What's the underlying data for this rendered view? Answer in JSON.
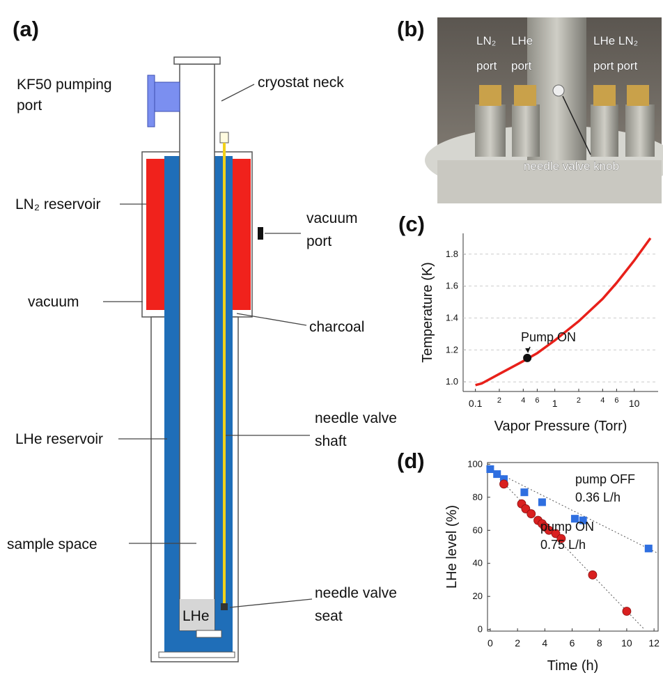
{
  "diagram": {
    "panel_label": "(a)",
    "labels": {
      "kf50": [
        "KF50 pumping",
        "port"
      ],
      "neck": "cryostat neck",
      "ln2": "LN₂ reservoir",
      "vacuum_port": [
        "vacuum",
        "port"
      ],
      "vacuum": "vacuum",
      "charcoal": "charcoal",
      "lhe_reservoir": "LHe reservoir",
      "shaft": [
        "needle valve",
        "shaft"
      ],
      "sample": "sample space",
      "seat": [
        "needle valve",
        "seat"
      ],
      "lhe": "LHe"
    }
  },
  "photo": {
    "panel_label": "(b)",
    "labels": {
      "ln2_left": [
        "LN₂",
        "port"
      ],
      "lhe_left": [
        "LHe",
        "port"
      ],
      "right": [
        "LHe LN₂",
        "port port"
      ],
      "knob": "needle valve knob"
    }
  },
  "chart_data": [
    {
      "type": "line",
      "panel_label": "(c)",
      "xlabel": "Vapor Pressure (Torr)",
      "ylabel": "Temperature (K)",
      "xscale": "log",
      "xlim": [
        0.07,
        20
      ],
      "ylim": [
        0.94,
        1.93
      ],
      "grid": true,
      "frame": false,
      "xticks": [
        0.1,
        {
          "value": 0.2,
          "label": "2"
        },
        {
          "value": 0.4,
          "label": "4"
        },
        {
          "value": 0.6,
          "label": "6"
        },
        1,
        {
          "value": 2,
          "label": "2"
        },
        {
          "value": 4,
          "label": "4"
        },
        {
          "value": 6,
          "label": "6"
        },
        10
      ],
      "yticks": [
        {
          "value": 1,
          "label": "1.0"
        },
        1.2,
        1.4,
        1.6,
        1.8
      ],
      "series": [
        {
          "color": "#e8201a",
          "x": [
            0.1,
            0.12,
            0.2,
            0.4,
            0.6,
            1,
            2,
            4,
            6,
            10,
            16
          ],
          "values": [
            0.98,
            0.99,
            1.05,
            1.13,
            1.18,
            1.26,
            1.38,
            1.52,
            1.62,
            1.76,
            1.9
          ]
        }
      ],
      "annotations": [
        {
          "text": "Pump ON",
          "x": 0.45,
          "y": 1.15
        }
      ]
    },
    {
      "type": "scatter",
      "panel_label": "(d)",
      "xlabel": "Time (h)",
      "ylabel": "LHe level (%)",
      "xlim": [
        -0.2,
        12.3
      ],
      "ylim": [
        -1,
        101
      ],
      "grid": false,
      "frame": true,
      "xticks": [
        0,
        2,
        4,
        6,
        8,
        10,
        12
      ],
      "yticks": [
        0,
        20,
        40,
        60,
        80,
        100
      ],
      "series": [
        {
          "name": "pump OFF",
          "color": "#2f6fe0",
          "marker": "square",
          "x": [
            0,
            0.5,
            1,
            2.5,
            3.8,
            6.2,
            6.8,
            11.6
          ],
          "values": [
            97,
            94,
            91,
            83,
            77,
            67,
            66,
            49
          ]
        },
        {
          "name": "pump ON",
          "color": "#d92020",
          "marker": "circle",
          "x": [
            1,
            2.3,
            2.6,
            3,
            3.5,
            3.8,
            4,
            4.3,
            4.8,
            5.2,
            7.5,
            10
          ],
          "values": [
            88,
            76,
            73,
            70,
            66,
            64,
            62,
            60,
            58,
            55,
            33,
            11
          ]
        }
      ],
      "fits": [
        {
          "x": [
            0,
            12.3
          ],
          "values": [
            97,
            46
          ]
        },
        {
          "x": [
            0,
            11.3
          ],
          "values": [
            97,
            0
          ]
        }
      ],
      "annotations": [
        {
          "text": "0.36 L/h"
        },
        {
          "text": "0.75 L/h"
        }
      ]
    }
  ]
}
